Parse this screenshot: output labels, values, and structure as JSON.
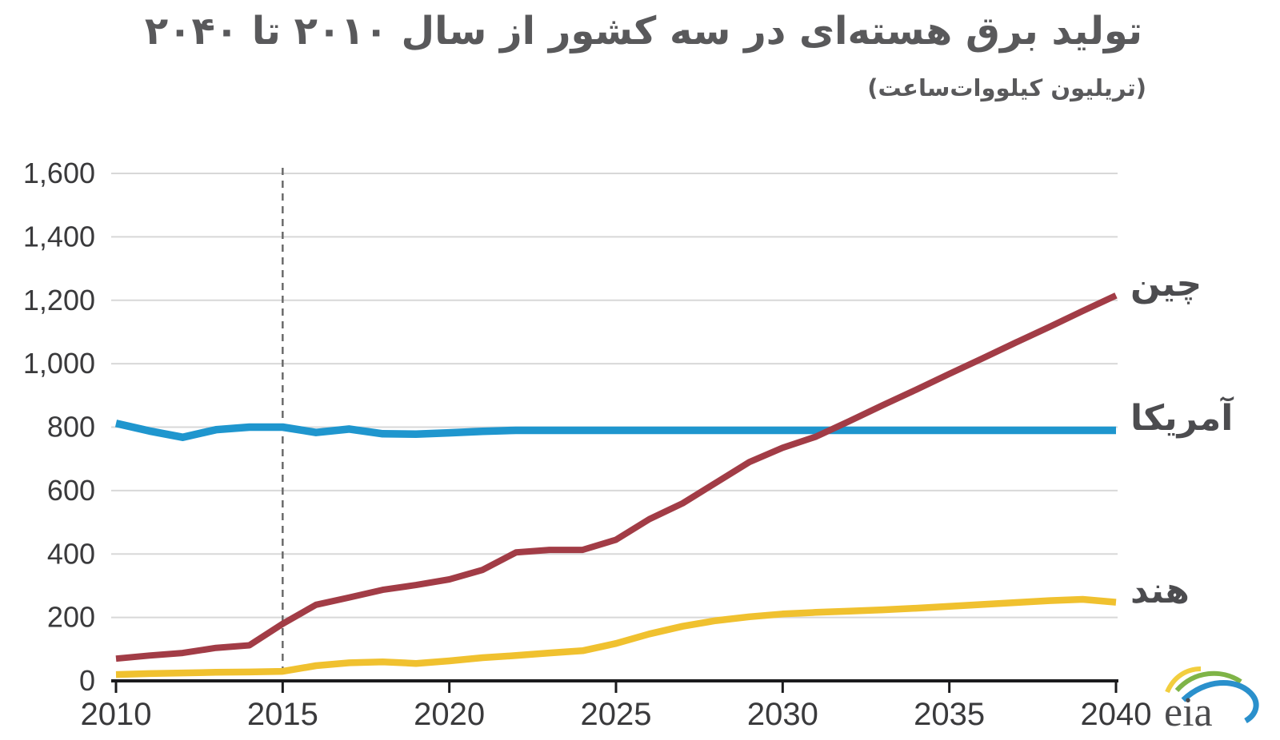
{
  "title": "تولید برق هسته‌ای در سه کشور از سال ۲۰۱۰ تا ۲۰۴۰",
  "subtitle": "(تریلیون کیلووات‌ساعت)",
  "logo": {
    "text": "eia"
  },
  "chart_data": {
    "type": "line",
    "title": "تولید برق هسته‌ای در سه کشور از سال ۲۰۱۰ تا ۲۰۴۰",
    "unit_label": "(تریلیون کیلووات‌ساعت)",
    "xlim": [
      2010,
      2040
    ],
    "ylim": [
      0,
      1600
    ],
    "grid": "horizontal",
    "legend_position": "right-of-line-ends",
    "dashed_reference_x": 2015,
    "x_start": 2010,
    "x_step": 1,
    "yticks": [
      {
        "v": 0,
        "label": "0"
      },
      {
        "v": 200,
        "label": "200"
      },
      {
        "v": 400,
        "label": "400"
      },
      {
        "v": 600,
        "label": "600"
      },
      {
        "v": 800,
        "label": "800"
      },
      {
        "v": 1000,
        "label": "1,000"
      },
      {
        "v": 1200,
        "label": "1,200"
      },
      {
        "v": 1400,
        "label": "1,400"
      },
      {
        "v": 1600,
        "label": "1,600"
      }
    ],
    "xticks": [
      {
        "v": 2010,
        "label": "2010"
      },
      {
        "v": 2015,
        "label": "2015"
      },
      {
        "v": 2020,
        "label": "2020"
      },
      {
        "v": 2025,
        "label": "2025"
      },
      {
        "v": 2030,
        "label": "2030"
      },
      {
        "v": 2035,
        "label": "2035"
      },
      {
        "v": 2040,
        "label": "2040"
      }
    ],
    "series": [
      {
        "id": "china",
        "label": "چین",
        "color": "#a23c46",
        "values": [
          70,
          80,
          88,
          104,
          112,
          180,
          240,
          263,
          287,
          302,
          320,
          350,
          405,
          413,
          413,
          445,
          510,
          560,
          625,
          690,
          735,
          770,
          819,
          869,
          918,
          968,
          1017,
          1067,
          1116,
          1166,
          1215
        ]
      },
      {
        "id": "usa",
        "label": "آمریکا",
        "color": "#1f96ce",
        "values": [
          812,
          788,
          768,
          792,
          800,
          800,
          783,
          794,
          779,
          778,
          782,
          787,
          790,
          790,
          790,
          790,
          790,
          790,
          790,
          790,
          790,
          790,
          790,
          790,
          790,
          790,
          790,
          790,
          790,
          790,
          790
        ]
      },
      {
        "id": "india",
        "label": "هند",
        "color": "#f0c12f",
        "values": [
          20,
          23,
          25,
          27,
          28,
          30,
          48,
          57,
          60,
          55,
          63,
          73,
          80,
          88,
          95,
          118,
          148,
          172,
          190,
          202,
          211,
          216,
          220,
          224,
          229,
          235,
          241,
          247,
          253,
          257,
          248
        ]
      }
    ]
  }
}
